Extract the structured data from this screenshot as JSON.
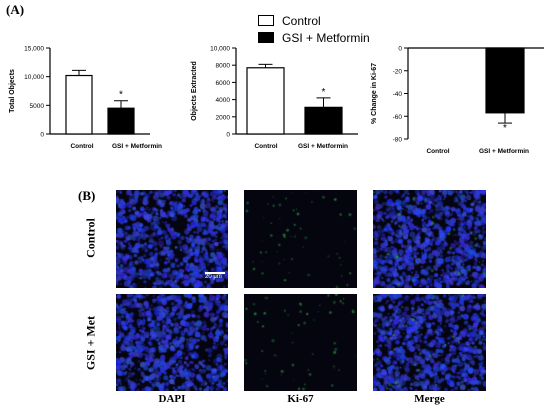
{
  "panel_a_label": "(A)",
  "panel_b_label": "(B)",
  "legend": [
    {
      "name": "Control",
      "fill": "#ffffff"
    },
    {
      "name": "GSI + Metformin",
      "fill": "#000000"
    }
  ],
  "chart_data": [
    {
      "type": "bar",
      "categories": [
        "Control",
        "GSI + Metformin"
      ],
      "values": [
        10200,
        4500
      ],
      "errors": [
        900,
        1300
      ],
      "significance": [
        "",
        "*"
      ],
      "ylabel": "Total Objects",
      "ylim": [
        0,
        15000
      ],
      "yticks": [
        0,
        5000,
        10000,
        15000
      ],
      "ytick_labels": [
        "0",
        "5000",
        "10,000",
        "15,000"
      ]
    },
    {
      "type": "bar",
      "categories": [
        "Control",
        "GSI + Metformin"
      ],
      "values": [
        7700,
        3100
      ],
      "errors": [
        400,
        1100
      ],
      "significance": [
        "",
        "*"
      ],
      "ylabel": "Objects Extracted",
      "ylim": [
        0,
        10000
      ],
      "yticks": [
        0,
        2000,
        4000,
        6000,
        8000,
        10000
      ],
      "ytick_labels": [
        "0",
        "2000",
        "4000",
        "6000",
        "8000",
        "10,000"
      ]
    },
    {
      "type": "bar",
      "categories": [
        "Control",
        "GSI + Metformin"
      ],
      "values": [
        0,
        -57
      ],
      "errors": [
        0,
        9
      ],
      "significance": [
        "",
        "*"
      ],
      "ylabel": "% Change in Ki-67",
      "ylim": [
        -80,
        0
      ],
      "yticks": [
        0,
        -20,
        -40,
        -60,
        -80
      ],
      "ytick_labels": [
        "0",
        "-20",
        "-40",
        "-60",
        "-80"
      ]
    }
  ],
  "micrographs": {
    "rows": [
      "Control",
      "GSI + Met"
    ],
    "columns": [
      "DAPI",
      "Ki-67",
      "Merge"
    ],
    "scale_bar": "20 μm",
    "colors": {
      "dapi": "#1e2fd6",
      "ki67": "#2fa63a",
      "background": "#050510"
    }
  }
}
